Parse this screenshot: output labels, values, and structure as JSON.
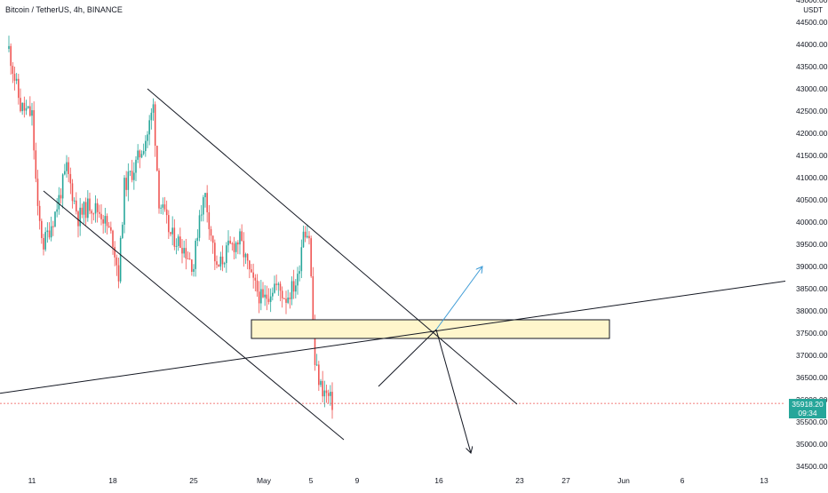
{
  "header": {
    "symbol": "Bitcoin / TetherUS, 4h, BINANCE",
    "currency": "USDT"
  },
  "price_tag": {
    "price": "35918.20",
    "countdown": "09:34"
  },
  "colors": {
    "up": "#26a69a",
    "down": "#ef5350",
    "drawing": "#131722",
    "zone_fill": "#fff6cc",
    "projection_up": "#3d9bd6",
    "last_price_line": "#ef5350"
  },
  "chart_data": {
    "type": "candlestick",
    "symbol": "BTCUSDT",
    "exchange": "BINANCE",
    "interval": "4h",
    "ylim": [
      34250,
      45000
    ],
    "y_ticks": [
      "34500.00",
      "35000.00",
      "35500.00",
      "36000.00",
      "36500.00",
      "37000.00",
      "37500.00",
      "38000.00",
      "38500.00",
      "39000.00",
      "39500.00",
      "40000.00",
      "40500.00",
      "41000.00",
      "41500.00",
      "42000.00",
      "42500.00",
      "43000.00",
      "43500.00",
      "44000.00",
      "44500.00",
      "45000.00"
    ],
    "x_ticks": [
      "11",
      "18",
      "25",
      "May",
      "5",
      "9",
      "16",
      "23",
      "27",
      "Jun",
      "6",
      "13"
    ],
    "last_price": 35918.2,
    "close_path": [
      [
        "2022-04-09",
        43900
      ],
      [
        "2022-04-10",
        42600
      ],
      [
        "2022-04-11",
        42400
      ],
      [
        "2022-04-11T12",
        40200
      ],
      [
        "2022-04-12",
        39500
      ],
      [
        "2022-04-13",
        40200
      ],
      [
        "2022-04-14",
        41200
      ],
      [
        "2022-04-15",
        40100
      ],
      [
        "2022-04-16",
        40400
      ],
      [
        "2022-04-17",
        40200
      ],
      [
        "2022-04-18",
        39600
      ],
      [
        "2022-04-18T12",
        38800
      ],
      [
        "2022-04-19",
        40800
      ],
      [
        "2022-04-20",
        41300
      ],
      [
        "2022-04-21",
        42000
      ],
      [
        "2022-04-21T12",
        42600
      ],
      [
        "2022-04-22",
        40500
      ],
      [
        "2022-04-23",
        39700
      ],
      [
        "2022-04-24",
        39500
      ],
      [
        "2022-04-25",
        39000
      ],
      [
        "2022-04-25T12",
        40200
      ],
      [
        "2022-04-26",
        40600
      ],
      [
        "2022-04-27",
        38900
      ],
      [
        "2022-04-28",
        39400
      ],
      [
        "2022-04-29",
        39600
      ],
      [
        "2022-04-30",
        38700
      ],
      [
        "2022-05-01",
        38200
      ],
      [
        "2022-05-02",
        38600
      ],
      [
        "2022-05-03",
        38300
      ],
      [
        "2022-05-04",
        38700
      ],
      [
        "2022-05-04T12",
        39900
      ],
      [
        "2022-05-05",
        39700
      ],
      [
        "2022-05-05T12",
        36800
      ],
      [
        "2022-05-06",
        36300
      ],
      [
        "2022-05-07",
        35918.2
      ]
    ],
    "drawings": [
      {
        "kind": "trendline",
        "label": "descending channel upper",
        "p1": [
          "2022-04-21",
          43000
        ],
        "p2": [
          "2022-05-23",
          35900
        ]
      },
      {
        "kind": "trendline",
        "label": "descending channel lower",
        "p1": [
          "2022-04-12",
          40700
        ],
        "p2": [
          "2022-05-08",
          35100
        ]
      },
      {
        "kind": "trendline",
        "label": "rising support",
        "p1": [
          "2022-04-07",
          36100
        ],
        "p2": [
          "2022-06-16",
          38700
        ]
      },
      {
        "kind": "rectangle",
        "label": "supply/demand zone",
        "y1": 37380,
        "y2": 37800,
        "x1": "2022-04-30",
        "x2": "2022-05-31"
      },
      {
        "kind": "projection",
        "label": "up",
        "from": [
          "2022-05-16",
          37580
        ],
        "to": [
          "2022-05-20",
          39000
        ]
      },
      {
        "kind": "projection",
        "label": "down",
        "from": [
          "2022-05-16",
          37580
        ],
        "to": [
          "2022-05-19",
          34800
        ]
      },
      {
        "kind": "projection",
        "label": "left",
        "from": [
          "2022-05-16",
          37580
        ],
        "to": [
          "2022-05-11",
          36300
        ]
      }
    ],
    "grid": false,
    "legend": "none"
  }
}
